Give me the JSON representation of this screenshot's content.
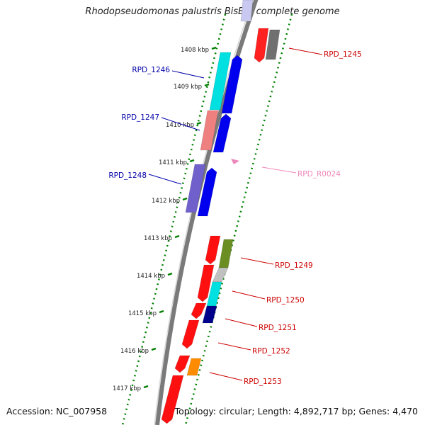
{
  "title": "Rhodopseudomonas palustris BisB5, complete genome",
  "footer": {
    "accession": "Accession: NC_007958",
    "summary": "Topology: circular; Length: 4,892,717 bp; Genes: 4,470"
  },
  "colors": {
    "backbone": "#808080",
    "tick_dots": "#008000",
    "forward_label": "#cc0000",
    "reverse_label": "#0000aa",
    "rna_label": "#ee88bb"
  },
  "scale_ticks": [
    {
      "label": "1408 kbp"
    },
    {
      "label": "1409 kbp"
    },
    {
      "label": "1410 kbp"
    },
    {
      "label": "1411 kbp"
    },
    {
      "label": "1412 kbp"
    },
    {
      "label": "1413 kbp"
    },
    {
      "label": "1414 kbp"
    },
    {
      "label": "1415 kbp"
    },
    {
      "label": "1416 kbp"
    },
    {
      "label": "1417 kbp"
    }
  ],
  "gene_labels": [
    {
      "name": "RPD_1245",
      "strand": "forward"
    },
    {
      "name": "RPD_1246",
      "strand": "reverse"
    },
    {
      "name": "RPD_1247",
      "strand": "reverse"
    },
    {
      "name": "RPD_1248",
      "strand": "reverse"
    },
    {
      "name": "RPD_R0024",
      "strand": "rna"
    },
    {
      "name": "RPD_1249",
      "strand": "forward"
    },
    {
      "name": "RPD_1250",
      "strand": "forward"
    },
    {
      "name": "RPD_1251",
      "strand": "forward"
    },
    {
      "name": "RPD_1252",
      "strand": "forward"
    },
    {
      "name": "RPD_1253",
      "strand": "forward"
    }
  ]
}
